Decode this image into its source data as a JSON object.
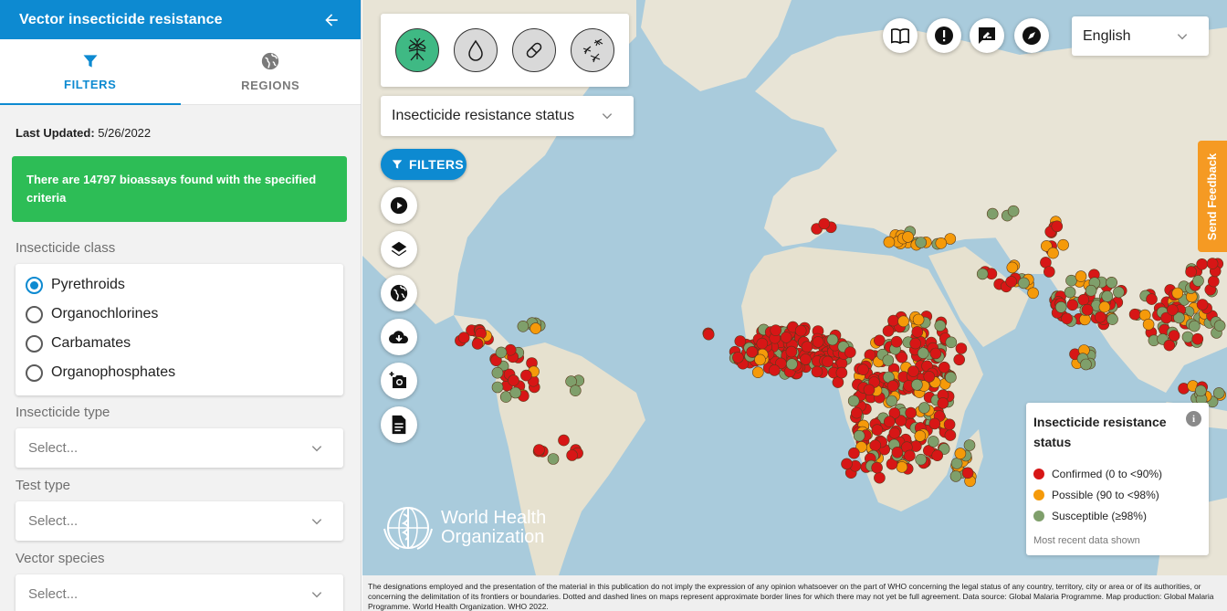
{
  "sidebar": {
    "title": "Vector insecticide resistance",
    "tabs": [
      {
        "label": "FILTERS",
        "icon": "filter-icon",
        "active": true
      },
      {
        "label": "REGIONS",
        "icon": "globe-icon",
        "active": false
      }
    ],
    "last_updated_label": "Last Updated:",
    "last_updated_value": "5/26/2022",
    "alert_text": "There are 14797 bioassays found with the specified criteria",
    "insecticide_class": {
      "label": "Insecticide class",
      "options": [
        "Pyrethroids",
        "Organochlorines",
        "Carbamates",
        "Organophosphates"
      ],
      "selected": "Pyrethroids"
    },
    "insecticide_type": {
      "label": "Insecticide type",
      "placeholder": "Select..."
    },
    "test_type": {
      "label": "Test type",
      "placeholder": "Select..."
    },
    "vector_species": {
      "label": "Vector species",
      "placeholder": "Select..."
    }
  },
  "map": {
    "theme_icons": [
      "mosquito-icon",
      "drop-icon",
      "pill-icon",
      "mosquitoes-icon"
    ],
    "status_select": "Insecticide resistance status",
    "filters_button": "FILTERS",
    "tools": [
      "play-icon",
      "layers-icon",
      "globe-icon",
      "cloud-download-icon",
      "camera-icon",
      "document-icon"
    ],
    "top_buttons": [
      "book-icon",
      "alert-icon",
      "feedback-icon",
      "compass-icon"
    ],
    "language": "English",
    "send_feedback": "Send Feedback",
    "legend": {
      "title": "Insecticide resistance status",
      "items": [
        {
          "label": "Confirmed (0 to <90%)",
          "color": "#d71616"
        },
        {
          "label": "Possible (90 to <98%)",
          "color": "#f59a0a"
        },
        {
          "label": "Susceptible (≥98%)",
          "color": "#7f9f6b"
        }
      ],
      "note": "Most recent data shown"
    },
    "logo": {
      "line1": "World Health",
      "line2": "Organization"
    },
    "disclaimer": "The designations employed and the presentation of the material in this publication do not imply the expression of any opinion whatsoever on the part of WHO concerning the legal status of any country, territory, city or area or of its authorities, or concerning the delimitation of its frontiers or boundaries. Dotted and dashed lines on maps represent approximate border lines for which there may not yet be full agreement. Data source: Global Malaria Programme. Map production: Global Malaria Programme. World Health Organization. WHO 2022."
  },
  "colors": {
    "primary": "#0d8ad1",
    "alert_green": "#2dbd56",
    "feedback_orange": "#f59a23",
    "confirmed": "#d71616",
    "possible": "#f59a0a",
    "susceptible": "#7f9f6b"
  }
}
